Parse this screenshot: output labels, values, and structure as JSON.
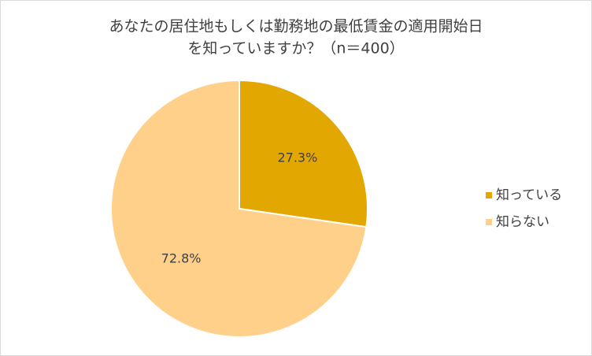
{
  "chart_data": {
    "type": "pie",
    "title": [
      "あなたの居住地もしくは勤務地の最低賃金の適用開始日",
      "を知っていますか？（n＝400）"
    ],
    "categories": [
      "知っている",
      "知らない"
    ],
    "values": [
      27.3,
      72.8
    ],
    "value_labels": [
      "27.3%",
      "72.8%"
    ],
    "colors": [
      "#e2a700",
      "#ffd08a"
    ],
    "legend": "right"
  }
}
